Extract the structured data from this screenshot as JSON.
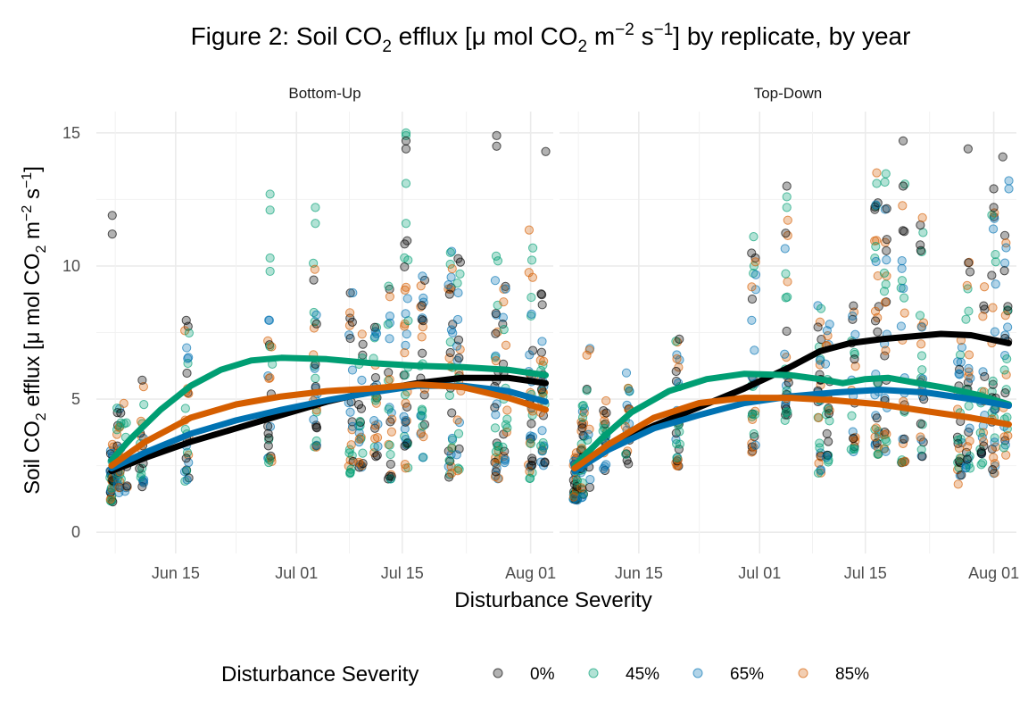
{
  "chart_data": {
    "type": "scatter",
    "title": {
      "prefix": "Figure 2: Soil  CO",
      "sub1": "2",
      "mid1": " efflux [μ mol CO",
      "sub2": "2",
      "mid2": " m",
      "sup1": "−2",
      "mid3": " s",
      "sup2": "−1",
      "suffix": "] by replicate, by year"
    },
    "ylabel": {
      "prefix": "Soil  CO",
      "sub1": "2",
      "mid1": " efflux [μ mol CO",
      "sub2": "2",
      "mid2": " m",
      "sup1": "−2",
      "mid3": " s",
      "sup2": "−1",
      "suffix": "]"
    },
    "xlabel": "Disturbance Severity",
    "x_unit": "day of year",
    "x_range": [
      155.5,
      216
    ],
    "ylim": [
      -0.8,
      15.8
    ],
    "y_ticks": [
      0,
      5,
      10,
      15
    ],
    "x_ticks": [
      {
        "label": "Jun 15",
        "x": 166
      },
      {
        "label": "Jul 01",
        "x": 182
      },
      {
        "label": "Jul 15",
        "x": 196
      },
      {
        "label": "Aug 01",
        "x": 213
      }
    ],
    "x_minor_ticks": [
      158,
      174,
      189,
      204.5
    ],
    "legend": {
      "title": "Disturbance Severity",
      "position": "bottom",
      "entries": [
        "0%",
        "45%",
        "65%",
        "85%"
      ]
    },
    "series_colors": {
      "0%": "#000000",
      "45%": "#009E73",
      "65%": "#0072B2",
      "85%": "#D55E00"
    },
    "point_alpha": 0.3,
    "panels": [
      {
        "label": "Bottom-Up",
        "point_days": [
          {
            "x": 157.6,
            "n": 40,
            "lo": 1.1,
            "hi": 3.3
          },
          {
            "x": 158.5,
            "n": 30,
            "lo": 1.4,
            "hi": 4.8
          },
          {
            "x": 159.3,
            "n": 10,
            "lo": 1.5,
            "hi": 5.6
          },
          {
            "x": 161.5,
            "n": 22,
            "lo": 1.7,
            "hi": 6.1
          },
          {
            "x": 167.5,
            "n": 30,
            "lo": 1.9,
            "hi": 8.2
          },
          {
            "x": 178.5,
            "n": 26,
            "lo": 2.6,
            "hi": 8.0
          },
          {
            "x": 184.5,
            "n": 30,
            "lo": 3.2,
            "hi": 10.2
          },
          {
            "x": 189.2,
            "n": 26,
            "lo": 2.2,
            "hi": 9.0
          },
          {
            "x": 190.5,
            "n": 26,
            "lo": 2.4,
            "hi": 8.0
          },
          {
            "x": 192.5,
            "n": 28,
            "lo": 2.8,
            "hi": 8.0
          },
          {
            "x": 194.4,
            "n": 26,
            "lo": 2.0,
            "hi": 9.6
          },
          {
            "x": 196.5,
            "n": 36,
            "lo": 2.4,
            "hi": 11.0
          },
          {
            "x": 198.7,
            "n": 30,
            "lo": 2.8,
            "hi": 11.3
          },
          {
            "x": 202.4,
            "n": 34,
            "lo": 1.9,
            "hi": 10.7
          },
          {
            "x": 203.5,
            "n": 24,
            "lo": 2.3,
            "hi": 10.4
          },
          {
            "x": 208.5,
            "n": 34,
            "lo": 2.0,
            "hi": 10.5
          },
          {
            "x": 209.6,
            "n": 26,
            "lo": 2.6,
            "hi": 9.3
          },
          {
            "x": 213.0,
            "n": 40,
            "lo": 2.0,
            "hi": 11.4
          },
          {
            "x": 214.6,
            "n": 34,
            "lo": 2.5,
            "hi": 9.3
          }
        ],
        "highlights": [
          {
            "x": 157.6,
            "y": 11.9,
            "s": "0%"
          },
          {
            "x": 157.6,
            "y": 11.2,
            "s": "0%"
          },
          {
            "x": 178.5,
            "y": 12.7,
            "s": "45%"
          },
          {
            "x": 178.5,
            "y": 12.1,
            "s": "45%"
          },
          {
            "x": 178.5,
            "y": 10.3,
            "s": "45%"
          },
          {
            "x": 178.5,
            "y": 9.8,
            "s": "45%"
          },
          {
            "x": 184.5,
            "y": 12.2,
            "s": "45%"
          },
          {
            "x": 184.5,
            "y": 11.6,
            "s": "45%"
          },
          {
            "x": 196.5,
            "y": 15.0,
            "s": "45%"
          },
          {
            "x": 196.5,
            "y": 14.9,
            "s": "45%"
          },
          {
            "x": 196.5,
            "y": 14.7,
            "s": "0%"
          },
          {
            "x": 196.5,
            "y": 14.4,
            "s": "0%"
          },
          {
            "x": 196.5,
            "y": 13.1,
            "s": "45%"
          },
          {
            "x": 196.5,
            "y": 11.6,
            "s": "45%"
          },
          {
            "x": 196.5,
            "y": 9.2,
            "s": "85%"
          },
          {
            "x": 208.5,
            "y": 14.9,
            "s": "0%"
          },
          {
            "x": 208.5,
            "y": 14.5,
            "s": "0%"
          },
          {
            "x": 215.0,
            "y": 14.3,
            "s": "0%"
          }
        ],
        "smooth": {
          "0%": [
            [
              157.5,
              2.3
            ],
            [
              162,
              2.8
            ],
            [
              168,
              3.4
            ],
            [
              174,
              3.9
            ],
            [
              180,
              4.4
            ],
            [
              186,
              4.9
            ],
            [
              192,
              5.3
            ],
            [
              198,
              5.6
            ],
            [
              204,
              5.8
            ],
            [
              210,
              5.8
            ],
            [
              215,
              5.6
            ]
          ],
          "45%": [
            [
              157.5,
              2.7
            ],
            [
              160,
              3.5
            ],
            [
              164,
              4.6
            ],
            [
              168,
              5.5
            ],
            [
              172,
              6.1
            ],
            [
              176,
              6.45
            ],
            [
              180,
              6.55
            ],
            [
              186,
              6.5
            ],
            [
              192,
              6.35
            ],
            [
              198,
              6.25
            ],
            [
              204,
              6.2
            ],
            [
              210,
              6.1
            ],
            [
              215,
              5.9
            ]
          ],
          "65%": [
            [
              157.5,
              2.4
            ],
            [
              162,
              3.0
            ],
            [
              168,
              3.7
            ],
            [
              174,
              4.2
            ],
            [
              180,
              4.6
            ],
            [
              186,
              4.95
            ],
            [
              192,
              5.25
            ],
            [
              198,
              5.5
            ],
            [
              204,
              5.5
            ],
            [
              210,
              5.3
            ],
            [
              215,
              4.9
            ]
          ],
          "85%": [
            [
              157.5,
              2.5
            ],
            [
              162,
              3.4
            ],
            [
              168,
              4.3
            ],
            [
              174,
              4.8
            ],
            [
              180,
              5.1
            ],
            [
              186,
              5.3
            ],
            [
              192,
              5.4
            ],
            [
              198,
              5.55
            ],
            [
              204,
              5.45
            ],
            [
              210,
              5.05
            ],
            [
              215,
              4.6
            ]
          ]
        }
      },
      {
        "label": "Top-Down",
        "point_days": [
          {
            "x": 157.6,
            "n": 40,
            "lo": 1.2,
            "hi": 3.0
          },
          {
            "x": 158.5,
            "n": 34,
            "lo": 1.3,
            "hi": 4.8
          },
          {
            "x": 159.3,
            "n": 12,
            "lo": 1.6,
            "hi": 7.0
          },
          {
            "x": 161.5,
            "n": 22,
            "lo": 2.3,
            "hi": 5.2
          },
          {
            "x": 164.5,
            "n": 20,
            "lo": 2.5,
            "hi": 6.2
          },
          {
            "x": 171.2,
            "n": 30,
            "lo": 2.3,
            "hi": 7.5
          },
          {
            "x": 181.2,
            "n": 30,
            "lo": 3.0,
            "hi": 11.0
          },
          {
            "x": 185.6,
            "n": 30,
            "lo": 4.2,
            "hi": 13.0
          },
          {
            "x": 190.0,
            "n": 30,
            "lo": 2.2,
            "hi": 9.0
          },
          {
            "x": 191.0,
            "n": 26,
            "lo": 2.6,
            "hi": 8.0
          },
          {
            "x": 194.4,
            "n": 26,
            "lo": 3.0,
            "hi": 8.6
          },
          {
            "x": 197.5,
            "n": 36,
            "lo": 2.9,
            "hi": 12.4
          },
          {
            "x": 198.7,
            "n": 30,
            "lo": 3.0,
            "hi": 13.5
          },
          {
            "x": 201.0,
            "n": 28,
            "lo": 2.6,
            "hi": 13.1
          },
          {
            "x": 203.5,
            "n": 30,
            "lo": 2.8,
            "hi": 12.0
          },
          {
            "x": 208.5,
            "n": 30,
            "lo": 1.8,
            "hi": 8.0
          },
          {
            "x": 209.6,
            "n": 30,
            "lo": 2.4,
            "hi": 10.6
          },
          {
            "x": 211.5,
            "n": 26,
            "lo": 2.5,
            "hi": 9.3
          },
          {
            "x": 213.0,
            "n": 34,
            "lo": 2.2,
            "hi": 12.0
          },
          {
            "x": 214.6,
            "n": 30,
            "lo": 2.6,
            "hi": 11.3
          }
        ],
        "highlights": [
          {
            "x": 185.6,
            "y": 13.0,
            "s": "0%"
          },
          {
            "x": 185.6,
            "y": 12.6,
            "s": "45%"
          },
          {
            "x": 185.6,
            "y": 12.2,
            "s": "45%"
          },
          {
            "x": 181.2,
            "y": 11.1,
            "s": "45%"
          },
          {
            "x": 197.5,
            "y": 13.5,
            "s": "85%"
          },
          {
            "x": 197.5,
            "y": 13.1,
            "s": "45%"
          },
          {
            "x": 201.0,
            "y": 14.7,
            "s": "0%"
          },
          {
            "x": 201.0,
            "y": 13.0,
            "s": "0%"
          },
          {
            "x": 209.6,
            "y": 14.4,
            "s": "0%"
          },
          {
            "x": 214.2,
            "y": 14.1,
            "s": "0%"
          },
          {
            "x": 215.0,
            "y": 13.2,
            "s": "65%"
          },
          {
            "x": 215.0,
            "y": 12.9,
            "s": "65%"
          },
          {
            "x": 213.0,
            "y": 12.9,
            "s": "0%"
          },
          {
            "x": 213.0,
            "y": 12.2,
            "s": "0%"
          }
        ],
        "smooth": {
          "0%": [
            [
              157.5,
              2.4
            ],
            [
              162,
              3.2
            ],
            [
              168,
              4.0
            ],
            [
              174,
              4.7
            ],
            [
              180,
              5.4
            ],
            [
              186,
              6.2
            ],
            [
              190,
              6.8
            ],
            [
              194,
              7.1
            ],
            [
              198,
              7.25
            ],
            [
              202,
              7.35
            ],
            [
              206,
              7.45
            ],
            [
              210,
              7.4
            ],
            [
              215,
              7.1
            ]
          ],
          "45%": [
            [
              157.5,
              2.5
            ],
            [
              161,
              3.5
            ],
            [
              165,
              4.5
            ],
            [
              170,
              5.3
            ],
            [
              175,
              5.75
            ],
            [
              180,
              5.95
            ],
            [
              186,
              5.9
            ],
            [
              190,
              5.75
            ],
            [
              193,
              5.6
            ],
            [
              196,
              5.75
            ],
            [
              199,
              5.8
            ],
            [
              203,
              5.6
            ],
            [
              207,
              5.4
            ],
            [
              211,
              5.15
            ],
            [
              215,
              4.8
            ]
          ],
          "65%": [
            [
              157.5,
              2.3
            ],
            [
              162,
              3.1
            ],
            [
              168,
              3.9
            ],
            [
              174,
              4.4
            ],
            [
              180,
              4.85
            ],
            [
              186,
              5.1
            ],
            [
              192,
              5.25
            ],
            [
              198,
              5.35
            ],
            [
              204,
              5.25
            ],
            [
              210,
              5.0
            ],
            [
              215,
              4.75
            ]
          ],
          "85%": [
            [
              157.5,
              2.4
            ],
            [
              162,
              3.3
            ],
            [
              168,
              4.3
            ],
            [
              174,
              4.85
            ],
            [
              180,
              5.05
            ],
            [
              186,
              5.05
            ],
            [
              192,
              4.95
            ],
            [
              198,
              4.8
            ],
            [
              204,
              4.55
            ],
            [
              210,
              4.3
            ],
            [
              215,
              4.05
            ]
          ]
        }
      }
    ]
  }
}
